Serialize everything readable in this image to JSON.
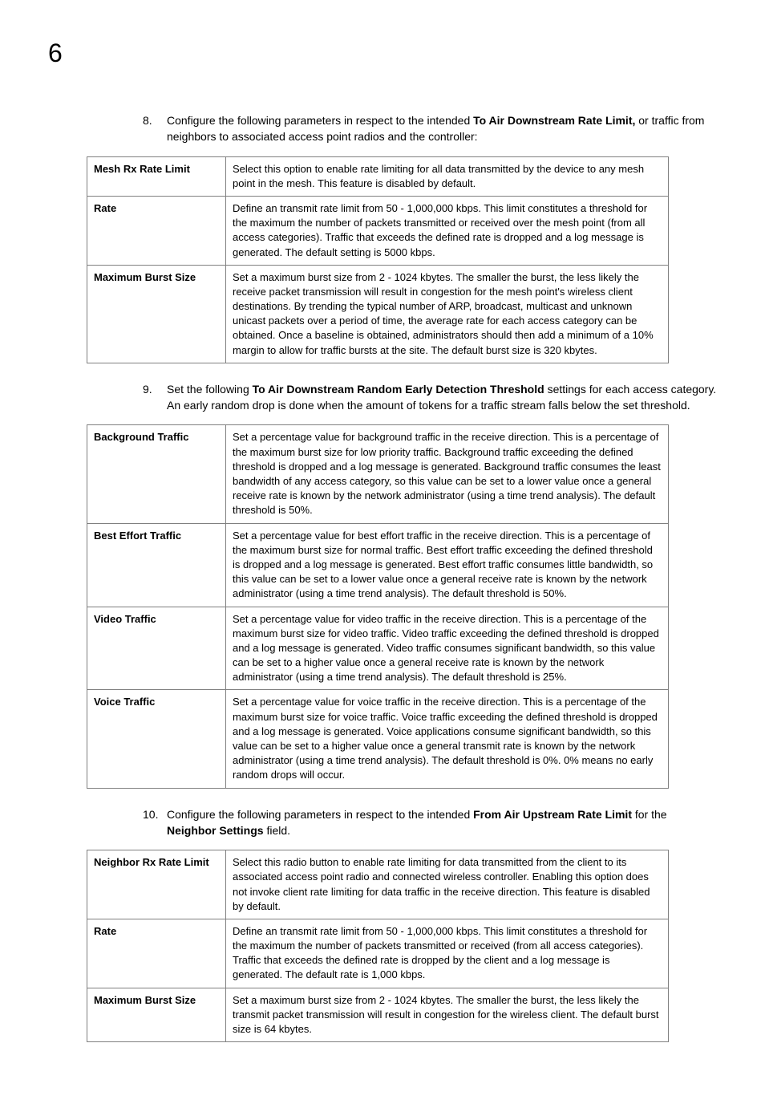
{
  "page_number": "6",
  "steps": {
    "s8": {
      "num": "8.",
      "pre": "Configure the following parameters in respect to the intended ",
      "bold": "To Air Downstream Rate Limit,",
      "post": " or traffic from neighbors to associated access point radios and the controller:"
    },
    "s9": {
      "num": "9.",
      "pre": "Set the following ",
      "bold": "To Air Downstream Random Early Detection Threshold",
      "post": " settings for each access category. An early random drop is done when the amount of tokens for a traffic stream falls below the set threshold."
    },
    "s10": {
      "num": "10.",
      "pre": "Configure the following parameters in respect to the intended ",
      "bold": "From Air Upstream Rate Limit",
      "post_pre": " for the ",
      "bold2": "Neighbor Settings",
      "post": " field."
    }
  },
  "table1": {
    "r0": {
      "label": "Mesh Rx Rate Limit",
      "desc": "Select this option to enable rate limiting for all data transmitted by the device to any mesh point in the mesh. This feature is disabled by default."
    },
    "r1": {
      "label": "Rate",
      "desc": "Define an transmit rate limit from 50 - 1,000,000 kbps. This limit constitutes a threshold for the maximum the number of packets transmitted or received over the mesh point (from all access categories). Traffic that exceeds the defined rate is dropped and a log message is generated. The default setting is 5000 kbps."
    },
    "r2": {
      "label": "Maximum Burst Size",
      "desc": "Set a maximum burst size from 2 - 1024 kbytes. The smaller the burst, the less likely the receive packet transmission will result in congestion for the mesh point's wireless client destinations. By trending the typical number of ARP, broadcast, multicast and unknown unicast packets over a period of time, the average rate for each access category can be obtained. Once a baseline is obtained, administrators should then add a minimum of a 10% margin to allow for traffic bursts at the site. The default burst size is 320 kbytes."
    }
  },
  "table2": {
    "r0": {
      "label": "Background Traffic",
      "desc": "Set a percentage value for background traffic in the receive direction. This is a percentage of the maximum burst size for low priority traffic. Background traffic exceeding the defined threshold is dropped and a log message is generated. Background traffic consumes the least bandwidth of any access category, so this value can be set to a lower value once a general receive rate is known by the network administrator (using a time trend analysis). The default threshold is 50%."
    },
    "r1": {
      "label": "Best Effort Traffic",
      "desc": "Set a percentage value for best effort traffic in the receive direction. This is a percentage of the maximum burst size for normal traffic. Best effort traffic exceeding the defined threshold is dropped and a log message is generated. Best effort traffic consumes little bandwidth, so this value can be set to a lower value once a general receive rate is known by the network administrator (using a time trend analysis). The default threshold is 50%."
    },
    "r2": {
      "label": "Video Traffic",
      "desc": "Set a percentage value for video traffic in the receive direction. This is a percentage of the maximum burst size for video traffic. Video traffic exceeding the defined threshold is dropped and a log message is generated. Video traffic consumes significant bandwidth, so this value can be set to a higher value once a general receive rate is known by the network administrator (using a time trend analysis). The default threshold is 25%."
    },
    "r3": {
      "label": "Voice Traffic",
      "desc": "Set a percentage value for voice traffic in the receive direction. This is a percentage of the maximum burst size for voice traffic. Voice traffic exceeding the defined threshold is dropped and a log message is generated. Voice applications consume significant bandwidth, so this value can be set to a higher value once a general transmit rate is known by the network administrator (using a time trend analysis). The default threshold is 0%. 0% means no early random drops will occur."
    }
  },
  "table3": {
    "r0": {
      "label": "Neighbor Rx Rate Limit",
      "desc": "Select this radio button to enable rate limiting for data transmitted from the client to its associated access point radio and connected wireless controller. Enabling this option does not invoke client rate limiting for data traffic in the receive direction. This feature is disabled by default."
    },
    "r1": {
      "label": "Rate",
      "desc": "Define an transmit rate limit from 50 - 1,000,000 kbps. This limit constitutes a threshold for the maximum the number of packets transmitted or received (from all access categories). Traffic that exceeds the defined rate is dropped by the client and a log message is generated. The default rate is 1,000 kbps."
    },
    "r2": {
      "label": "Maximum Burst Size",
      "desc": "Set a maximum burst size from 2 - 1024 kbytes. The smaller the burst, the less likely the transmit packet transmission will result in congestion for the wireless client. The default burst size is 64 kbytes."
    }
  }
}
